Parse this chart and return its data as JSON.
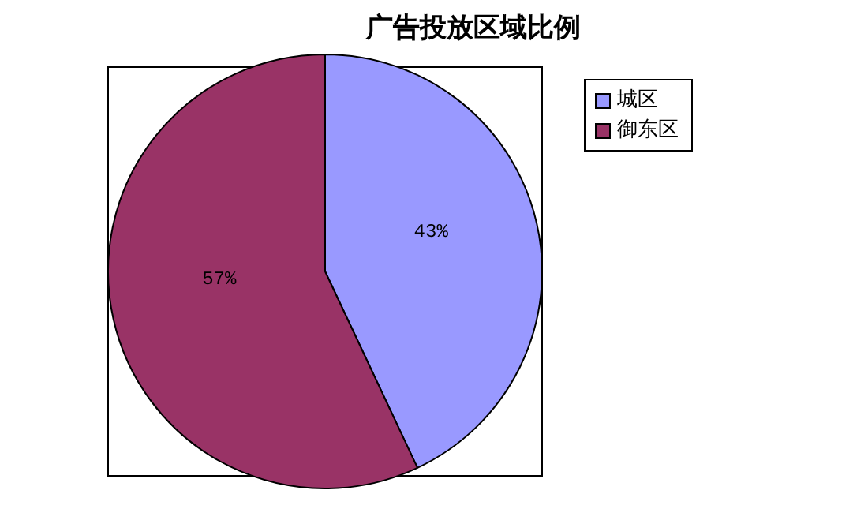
{
  "chart_data": {
    "type": "pie",
    "title": "广告投放区域比例",
    "categories": [
      "城区",
      "御东区"
    ],
    "values": [
      43,
      57
    ],
    "colors": [
      "#9999ff",
      "#993366"
    ],
    "value_labels": [
      "43%",
      "57%"
    ],
    "legend": "top right"
  }
}
